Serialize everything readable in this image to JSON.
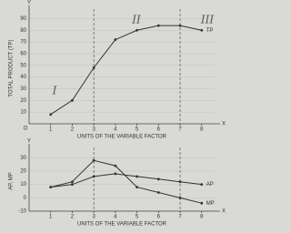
{
  "chart_data": [
    {
      "type": "line",
      "y_letter": "Y",
      "x_letter": "X",
      "origin": "O",
      "y_label": "TOTAL PRODUCT (TP)",
      "x_label": "UNITS OF THE VARIABLE FACTOR",
      "x": [
        1,
        2,
        3,
        4,
        5,
        6,
        7,
        8
      ],
      "series": [
        {
          "name": "TP",
          "color": "#333333",
          "values": [
            8,
            20,
            48,
            72,
            80,
            84,
            84,
            80
          ]
        }
      ],
      "xlim": [
        0,
        8.6
      ],
      "ylim": [
        0,
        95
      ],
      "xticks": [
        1,
        2,
        3,
        4,
        5,
        6,
        7,
        8
      ],
      "yticks": [
        10,
        20,
        30,
        40,
        50,
        60,
        70,
        80,
        90
      ],
      "grid": true,
      "vlines": [
        3,
        7
      ],
      "annotations": [
        "I",
        "II",
        "III"
      ]
    },
    {
      "type": "line",
      "y_letter": "Y",
      "x_letter": "X",
      "y_label": "AP, MP",
      "x_label": "UNITS OF THE VARIABLE FACTOR",
      "x": [
        1,
        2,
        3,
        4,
        5,
        6,
        7,
        8
      ],
      "series": [
        {
          "name": "AP",
          "color": "#333333",
          "values": [
            8,
            10,
            16,
            18,
            16,
            14,
            12,
            10
          ]
        },
        {
          "name": "MP",
          "color": "#333333",
          "values": [
            8,
            12,
            28,
            24,
            8,
            4,
            0,
            -4
          ]
        }
      ],
      "xlim": [
        0,
        8.6
      ],
      "ylim": [
        -10,
        35
      ],
      "xticks": [
        1,
        2,
        3,
        4,
        5,
        6,
        7,
        8
      ],
      "yticks": [
        -10,
        0,
        10,
        20,
        30
      ],
      "grid": true,
      "vlines": [
        3,
        7
      ]
    }
  ]
}
